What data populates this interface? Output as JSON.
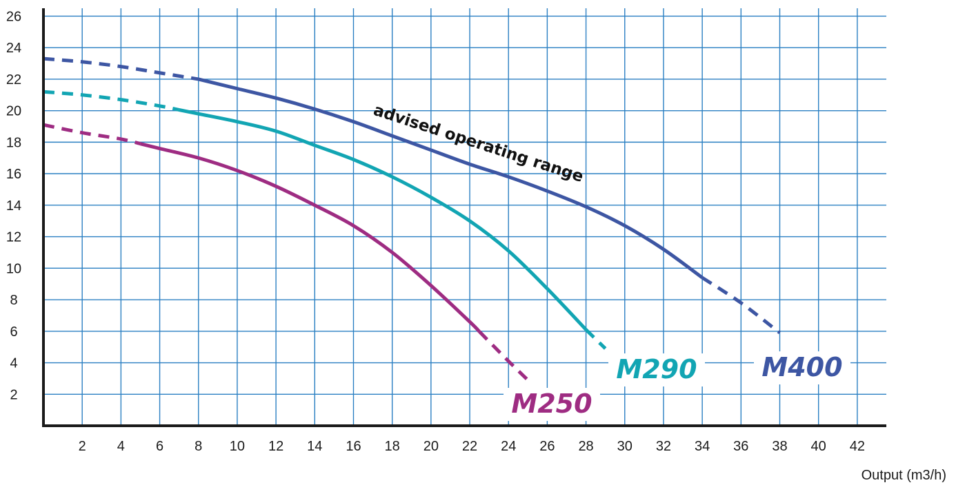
{
  "chart_data": {
    "type": "line",
    "xlabel": "Output (m3/h)",
    "ylabel": "",
    "title": "",
    "xlim": [
      0,
      43.5
    ],
    "ylim": [
      0,
      26.5
    ],
    "x_ticks": [
      2,
      4,
      6,
      8,
      10,
      12,
      14,
      16,
      18,
      20,
      22,
      24,
      26,
      28,
      30,
      32,
      34,
      36,
      38,
      40,
      42
    ],
    "y_ticks": [
      2,
      4,
      6,
      8,
      10,
      12,
      14,
      16,
      18,
      20,
      22,
      24,
      26
    ],
    "grid": true,
    "annotation": "advised operating range",
    "series": [
      {
        "name": "M400",
        "color": "#3d56a3",
        "points": [
          [
            0,
            23.3
          ],
          [
            2,
            23.1
          ],
          [
            4,
            22.8
          ],
          [
            6,
            22.4
          ],
          [
            8,
            22.0
          ],
          [
            10,
            21.4
          ],
          [
            12,
            20.8
          ],
          [
            14,
            20.1
          ],
          [
            16,
            19.3
          ],
          [
            18,
            18.4
          ],
          [
            20,
            17.5
          ],
          [
            22,
            16.6
          ],
          [
            24,
            15.8
          ],
          [
            26,
            14.9
          ],
          [
            28,
            13.9
          ],
          [
            30,
            12.7
          ],
          [
            32,
            11.2
          ],
          [
            34,
            9.4
          ],
          [
            36,
            7.8
          ],
          [
            38,
            5.9
          ]
        ],
        "solid_range": [
          8,
          34
        ]
      },
      {
        "name": "M290",
        "color": "#12a5b3",
        "points": [
          [
            0,
            21.2
          ],
          [
            2,
            21.0
          ],
          [
            4,
            20.7
          ],
          [
            6,
            20.3
          ],
          [
            8,
            19.8
          ],
          [
            10,
            19.3
          ],
          [
            12,
            18.7
          ],
          [
            14,
            17.8
          ],
          [
            16,
            16.9
          ],
          [
            18,
            15.8
          ],
          [
            20,
            14.5
          ],
          [
            22,
            13.0
          ],
          [
            24,
            11.1
          ],
          [
            26,
            8.7
          ],
          [
            28,
            6.1
          ],
          [
            29,
            4.9
          ]
        ],
        "solid_range": [
          7,
          28
        ]
      },
      {
        "name": "M250",
        "color": "#9e2c82",
        "points": [
          [
            0,
            19.1
          ],
          [
            2,
            18.6
          ],
          [
            4,
            18.2
          ],
          [
            6,
            17.6
          ],
          [
            8,
            17.0
          ],
          [
            10,
            16.2
          ],
          [
            12,
            15.2
          ],
          [
            14,
            14.0
          ],
          [
            16,
            12.7
          ],
          [
            18,
            11.0
          ],
          [
            20,
            8.9
          ],
          [
            22,
            6.6
          ],
          [
            24,
            4.1
          ],
          [
            25,
            2.9
          ]
        ],
        "solid_range": [
          5,
          22.5
        ]
      }
    ]
  }
}
